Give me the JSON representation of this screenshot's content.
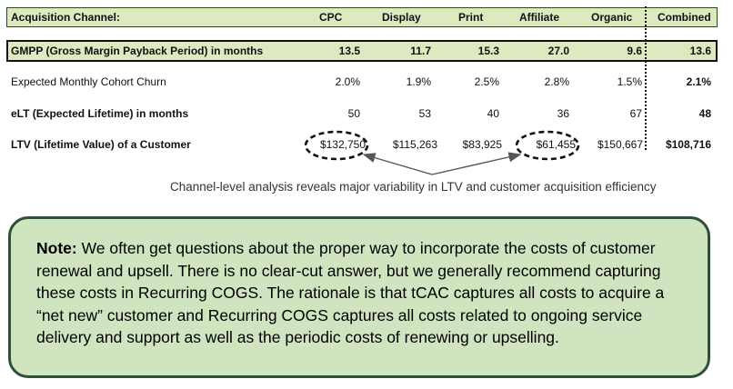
{
  "table": {
    "header": {
      "label": "Acquisition Channel:",
      "columns": [
        "CPC",
        "Display",
        "Print",
        "Affiliate",
        "Organic",
        "Combined"
      ]
    },
    "rows": [
      {
        "label": "GMPP (Gross Margin Payback Period) in months",
        "values": [
          "13.5",
          "11.7",
          "15.3",
          "27.0",
          "9.6"
        ],
        "combined": "13.6"
      },
      {
        "label": "Expected Monthly Cohort Churn",
        "values": [
          "2.0%",
          "1.9%",
          "2.5%",
          "2.8%",
          "1.5%"
        ],
        "combined": "2.1%"
      },
      {
        "label": "eLT (Expected Lifetime) in months",
        "values": [
          "50",
          "53",
          "40",
          "36",
          "67"
        ],
        "combined": "48"
      },
      {
        "label": "LTV (Lifetime Value) of a Customer",
        "values": [
          "$132,750",
          "$115,263",
          "$83,925",
          "$61,455",
          "$150,667"
        ],
        "combined": "$108,716"
      }
    ]
  },
  "caption": "Channel-level analysis reveals major variability in LTV and customer acquisition efficiency",
  "note": {
    "label": "Note:",
    "text": " We often get questions about the proper way to incorporate the costs of customer renewal and upsell. There is no clear-cut answer, but we generally recommend capturing these costs in Recurring COGS. The rationale is that tCAC captures all costs to acquire a “net new” customer and Recurring COGS captures all costs related to ongoing service delivery and support as well as the periodic costs of renewing or upselling."
  }
}
